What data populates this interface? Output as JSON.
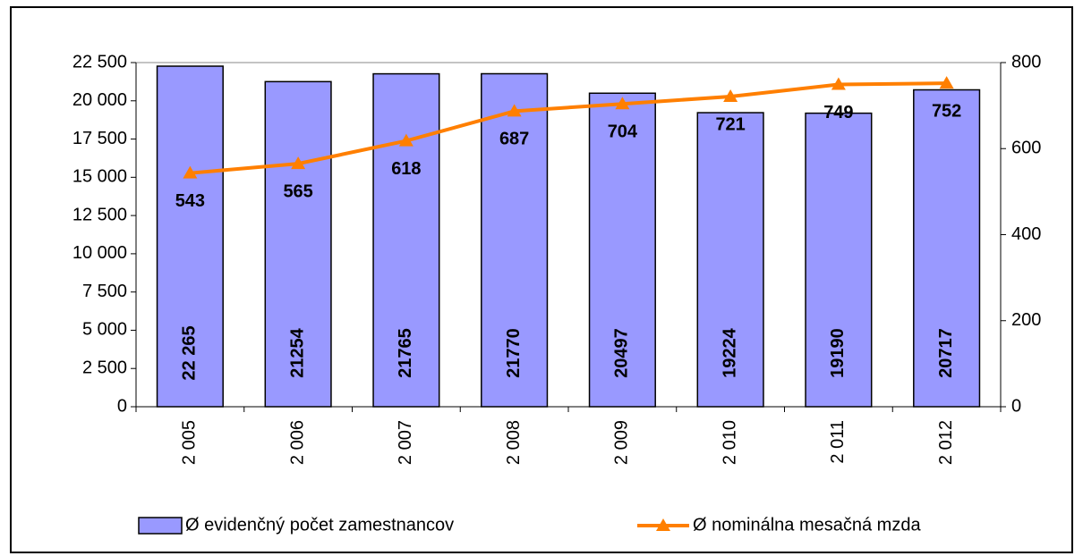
{
  "chart_data": {
    "type": "bar_line",
    "categories": [
      "2 005",
      "2 006",
      "2 007",
      "2 008",
      "2 009",
      "2 010",
      "2 011",
      "2 012"
    ],
    "series": [
      {
        "name": "Ø evidenčný počet zamestnancov",
        "type": "bar",
        "color": "#9999ff",
        "values": [
          22265,
          21254,
          21765,
          21770,
          20497,
          19224,
          19190,
          20717
        ],
        "value_labels": [
          "22 265",
          "21254",
          "21765",
          "21770",
          "20497",
          "19224",
          "19190",
          "20717"
        ]
      },
      {
        "name": "Ø nominálna mesačná mzda",
        "type": "line",
        "axis": "y2",
        "color": "#ff7f00",
        "values": [
          543,
          565,
          618,
          687,
          704,
          721,
          749,
          752
        ]
      }
    ],
    "ylim": [
      0,
      22500
    ],
    "yticks": [
      0,
      {
        "value": 2500,
        "label": "2 500"
      },
      {
        "value": 5000,
        "label": "5 000"
      },
      {
        "value": 7500,
        "label": "7 500"
      },
      {
        "value": 10000,
        "label": "10 000"
      },
      {
        "value": 12500,
        "label": "12 500"
      },
      {
        "value": 15000,
        "label": "15 000"
      },
      {
        "value": 17500,
        "label": "17 500"
      },
      {
        "value": 20000,
        "label": "20 000"
      },
      {
        "value": 22500,
        "label": "22 500"
      }
    ],
    "y2lim": [
      0,
      800
    ],
    "y2ticks": [
      0,
      200,
      400,
      600,
      800
    ],
    "legend": "bottom"
  }
}
